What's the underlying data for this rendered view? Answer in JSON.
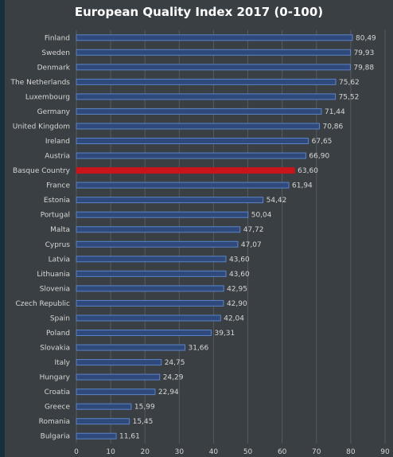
{
  "chart_data": {
    "type": "bar",
    "orientation": "horizontal",
    "title": "European Quality Index 2017 (0-100)",
    "categories": [
      "Finland",
      "Sweden",
      "Denmark",
      "The Netherlands",
      "Luxembourg",
      "Germany",
      "United Kingdom",
      "Ireland",
      "Austria",
      "Basque Country",
      "France",
      "Estonia",
      "Portugal",
      "Malta",
      "Cyprus",
      "Latvia",
      "Lithuania",
      "Slovenia",
      "Czech Republic",
      "Spain",
      "Poland",
      "Slovakia",
      "Italy",
      "Hungary",
      "Croatia",
      "Greece",
      "Romania",
      "Bulgaria"
    ],
    "values": [
      80.49,
      79.93,
      79.88,
      75.62,
      75.52,
      71.44,
      70.86,
      67.65,
      66.9,
      63.6,
      61.94,
      54.42,
      50.04,
      47.72,
      47.07,
      43.6,
      43.6,
      42.95,
      42.9,
      42.04,
      39.31,
      31.66,
      24.75,
      24.29,
      22.94,
      15.99,
      15.45,
      11.61
    ],
    "value_labels": [
      "80,49",
      "79,93",
      "79,88",
      "75,62",
      "75,52",
      "71,44",
      "70,86",
      "67,65",
      "66,90",
      "63,60",
      "61,94",
      "54,42",
      "50,04",
      "47,72",
      "47,07",
      "43,60",
      "43,60",
      "42,95",
      "42,90",
      "42,04",
      "39,31",
      "31,66",
      "24,75",
      "24,29",
      "22,94",
      "15,99",
      "15,45",
      "11,61"
    ],
    "highlight_category": "Basque Country",
    "xlim": [
      0,
      90
    ],
    "xticks": [
      0,
      10,
      20,
      30,
      40,
      50,
      60,
      70,
      80,
      90
    ],
    "grid": true,
    "legend": "none",
    "colors": {
      "bar_fill": "#2f4a7a",
      "bar_stroke": "#5b83c7",
      "highlight_fill": "#c8141b",
      "grid": "#555b61",
      "background": "#3a3f44"
    }
  }
}
